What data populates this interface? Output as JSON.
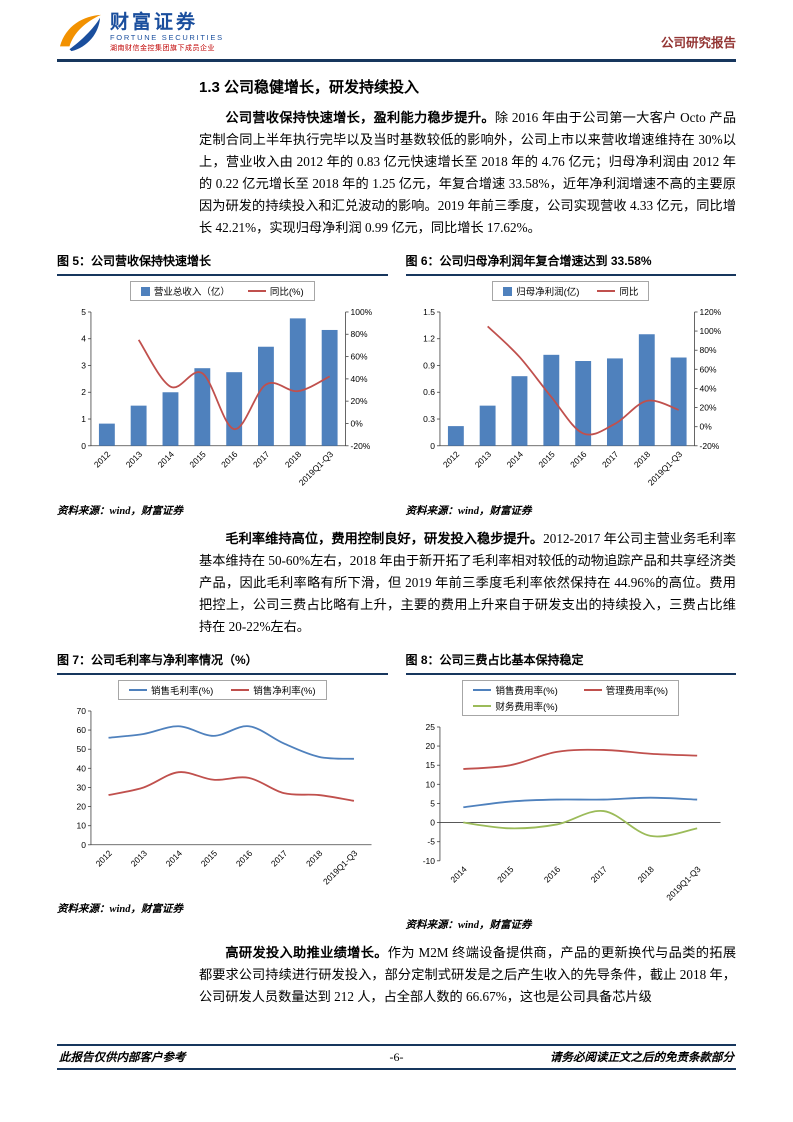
{
  "header": {
    "brand_cn": "财富证券",
    "brand_en": "FORTUNE SECURITIES",
    "brand_sub": "湖南财信金控集团旗下成员企业",
    "report_type": "公司研究报告"
  },
  "section": {
    "number_title": "1.3 公司稳健增长，研发持续投入"
  },
  "paragraphs": {
    "p1_bold": "公司营收保持快速增长，盈利能力稳步提升。",
    "p1_rest": "除 2016 年由于公司第一大客户 Octo 产品定制合同上半年执行完毕以及当时基数较低的影响外，公司上市以来营收增速维持在 30%以上，营业收入由 2012 年的 0.83 亿元快速增长至 2018 年的 4.76 亿元；归母净利润由 2012 年的 0.22 亿元增长至 2018 年的 1.25 亿元，年复合增速 33.58%，近年净利润增速不高的主要原因为研发的持续投入和汇兑波动的影响。2019 年前三季度，公司实现营收 4.33 亿元，同比增长 42.21%，实现归母净利润 0.99 亿元，同比增长 17.62%。",
    "p2_bold": "毛利率维持高位，费用控制良好，研发投入稳步提升。",
    "p2_rest": "2012-2017 年公司主营业务毛利率基本维持在 50-60%左右，2018 年由于新开拓了毛利率相对较低的动物追踪产品和共享经济类产品，因此毛利率略有所下滑，但 2019 年前三季度毛利率依然保持在 44.96%的高位。费用把控上，公司三费占比略有上升，主要的费用上升来自于研发支出的持续投入，三费占比维持在 20-22%左右。",
    "p3_bold": "高研发投入助推业绩增长。",
    "p3_rest": "作为 M2M 终端设备提供商，产品的更新换代与品类的拓展都要求公司持续进行研发投入，部分定制式研发是之后产生收入的先导条件，截止 2018 年，公司研发人员数量达到 212 人，占全部人数的 66.67%，这也是公司具备芯片级"
  },
  "figures": {
    "source": "资料来源：wind，财富证券"
  },
  "footer": {
    "left": "此报告仅供内部客户参考",
    "page": "-6-",
    "right": "请务必阅读正文之后的免责条款部分"
  },
  "chart_data": [
    {
      "id": "fig5",
      "type": "bar",
      "title": "图 5：公司营收保持快速增长",
      "categories": [
        "2012",
        "2013",
        "2014",
        "2015",
        "2016",
        "2017",
        "2018",
        "2019Q1-Q3"
      ],
      "series": [
        {
          "name": "营业总收入（亿）",
          "kind": "bar",
          "axis": "left",
          "color": "#4F81BD",
          "values": [
            0.83,
            1.5,
            2.0,
            2.9,
            2.75,
            3.7,
            4.76,
            4.33
          ]
        },
        {
          "name": "同比(%)",
          "kind": "line",
          "axis": "right",
          "color": "#C0504D",
          "values": [
            null,
            75,
            33,
            45,
            -5,
            35,
            29,
            42.21
          ]
        }
      ],
      "left_axis": {
        "min": 0,
        "max": 5,
        "step": 1
      },
      "right_axis": {
        "min": -20,
        "max": 100,
        "step": 20,
        "suffix": "%"
      },
      "grid": false,
      "legend_position": "top"
    },
    {
      "id": "fig6",
      "type": "bar",
      "title": "图 6：公司归母净利润年复合增速达到 33.58%",
      "categories": [
        "2012",
        "2013",
        "2014",
        "2015",
        "2016",
        "2017",
        "2018",
        "2019Q1-Q3"
      ],
      "series": [
        {
          "name": "归母净利润(亿)",
          "kind": "bar",
          "axis": "left",
          "color": "#4F81BD",
          "values": [
            0.22,
            0.45,
            0.78,
            1.02,
            0.95,
            0.98,
            1.25,
            0.99
          ]
        },
        {
          "name": "同比",
          "kind": "line",
          "axis": "right",
          "color": "#C0504D",
          "values": [
            null,
            105,
            73,
            31,
            -7,
            3,
            27,
            17.62
          ]
        }
      ],
      "left_axis": {
        "min": 0,
        "max": 1.5,
        "step": 0.3
      },
      "right_axis": {
        "min": -20,
        "max": 120,
        "step": 20,
        "suffix": "%"
      },
      "grid": false,
      "legend_position": "top"
    },
    {
      "id": "fig7",
      "type": "line",
      "title": "图 7：公司毛利率与净利率情况（%）",
      "categories": [
        "2012",
        "2013",
        "2014",
        "2015",
        "2016",
        "2017",
        "2018",
        "2019Q1-Q3"
      ],
      "series": [
        {
          "name": "销售毛利率(%)",
          "kind": "line",
          "axis": "left",
          "color": "#4F81BD",
          "values": [
            56,
            58,
            62,
            57,
            62,
            53,
            46,
            45
          ]
        },
        {
          "name": "销售净利率(%)",
          "kind": "line",
          "axis": "left",
          "color": "#C0504D",
          "values": [
            26,
            30,
            38,
            34,
            35,
            27,
            26,
            23
          ]
        }
      ],
      "left_axis": {
        "min": 0,
        "max": 70,
        "step": 10
      },
      "grid": false,
      "legend_position": "top"
    },
    {
      "id": "fig8",
      "type": "line",
      "title": "图 8：公司三费占比基本保持稳定",
      "categories": [
        "2014",
        "2015",
        "2016",
        "2017",
        "2018",
        "2019Q1-Q3"
      ],
      "legend_columns": 2,
      "axis_at_zero": true,
      "series": [
        {
          "name": "销售费用率(%)",
          "kind": "line",
          "axis": "left",
          "color": "#4F81BD",
          "values": [
            4,
            5.5,
            6,
            6,
            6.5,
            6
          ]
        },
        {
          "name": "管理费用率(%)",
          "kind": "line",
          "axis": "left",
          "color": "#C0504D",
          "values": [
            14,
            15,
            18.5,
            19,
            18,
            17.5
          ]
        },
        {
          "name": "财务费用率(%)",
          "kind": "line",
          "axis": "left",
          "color": "#9BBB59",
          "values": [
            0,
            -1.5,
            -0.5,
            3,
            -3.5,
            -1.5
          ]
        }
      ],
      "left_axis": {
        "min": -10,
        "max": 25,
        "step": 5
      },
      "grid": false,
      "legend_position": "top"
    }
  ]
}
